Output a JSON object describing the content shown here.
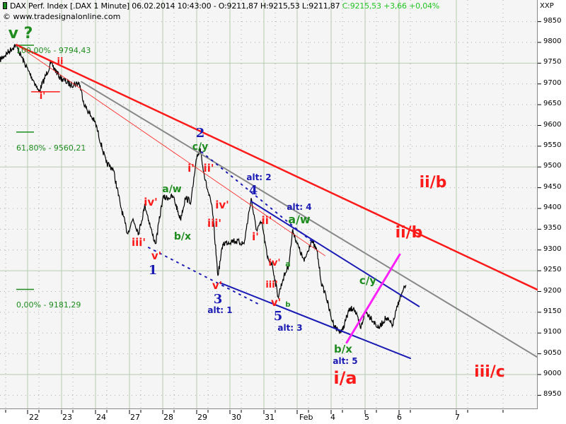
{
  "header": {
    "instrument": "DAX Perf. Index [.DAX  1 Minute]",
    "datetime": "06.02.2014 10:43:00",
    "ohl": "- O:9211,87 H:9215,53 L:9211,87",
    "close": "C:9215,53 +3,66 +0,04%",
    "copyright": "© www.tradesignalonline.com",
    "exchange": "XXP"
  },
  "colors": {
    "price": "#000000",
    "resistance": "#ff1a1a",
    "channel": "#1a1ab4",
    "gray_line": "#888888",
    "magenta": "#ff22ff",
    "fib": "#1e8c1e",
    "grid": "#b8ccb0"
  },
  "fib_levels": [
    {
      "label": "100,00% - 9794,43",
      "price": 9794.43
    },
    {
      "label": "61,80% - 9560,21",
      "price": 9560.21
    },
    {
      "label": "0,00% - 9181,29",
      "price": 9181.29
    }
  ],
  "wave_labels": {
    "v_q": "v ?",
    "ii_top": "ii",
    "i_top": "i'",
    "two": "2",
    "cy1": "c/y",
    "i2": "i'",
    "ii2": "ii'",
    "aw1": "a/w",
    "iv1": "iv'",
    "bx1": "b/x",
    "iii1": "iii'",
    "v1": "v'",
    "one": "1",
    "iv2": "iv'",
    "iii2": "iii'",
    "v2": "v'",
    "three": "3",
    "alt1": "alt: 1",
    "alt2": "alt: 2",
    "four": "4",
    "alt4": "alt: 4",
    "aw2": "a/w",
    "ii3": "ii'",
    "i3": "i'",
    "iv3": "iv'",
    "a3": "a",
    "iii3": "iii'",
    "v3": "v'",
    "b3": "b",
    "five": "5",
    "alt3": "alt: 3",
    "cy2": "c/y",
    "bx2": "b/x",
    "alt5": "alt: 5",
    "ia": "i/a",
    "iib1": "ii/b",
    "iib2": "ii/b",
    "iiic": "iii/c"
  },
  "chart_data": {
    "type": "line",
    "title": "DAX Perf. Index [.DAX  1 Minute]",
    "ylim": [
      8925,
      9870
    ],
    "yticks": [
      9850,
      9800,
      9750,
      9700,
      9650,
      9600,
      9550,
      9500,
      9450,
      9400,
      9350,
      9300,
      9250,
      9200,
      9150,
      9100,
      9050,
      9000,
      8950
    ],
    "xticks": [
      "22",
      "23",
      "24",
      "27",
      "28",
      "29",
      "30",
      "31",
      "Feb",
      "4",
      "5",
      "6",
      "7"
    ],
    "grid": true,
    "series": [
      {
        "points": [
          [
            "01-21 10:30",
            9757
          ],
          [
            "01-21 14:30",
            9794
          ],
          [
            "01-22 09:10",
            9732
          ],
          [
            "01-22 10:57",
            9700
          ],
          [
            "01-22 11:50",
            9680
          ],
          [
            "01-22 14:50",
            9750
          ],
          [
            "01-22 17:09",
            9715
          ],
          [
            "01-23 11:18",
            9698
          ],
          [
            "01-23 13:25",
            9702
          ],
          [
            "01-23 14:50",
            9647
          ],
          [
            "01-24 09:00",
            9605
          ],
          [
            "01-24 11:40",
            9510
          ],
          [
            "01-24 13:25",
            9495
          ],
          [
            "01-24 15:12",
            9410
          ],
          [
            "01-24 17:00",
            9340
          ],
          [
            "01-27 09:53",
            9375
          ],
          [
            "01-27 11:18",
            9340
          ],
          [
            "01-27 12:54",
            9408
          ],
          [
            "01-27 14:40",
            9340
          ],
          [
            "01-27 15:33",
            9315
          ],
          [
            "01-28 09:00",
            9425
          ],
          [
            "01-28 11:40",
            9428
          ],
          [
            "01-28 13:25",
            9374
          ],
          [
            "01-28 14:40",
            9425
          ],
          [
            "01-28 16:05",
            9417
          ],
          [
            "01-29 09:00",
            9520
          ],
          [
            "01-29 09:53",
            9545
          ],
          [
            "01-29 11:07",
            9468
          ],
          [
            "01-29 12:54",
            9400
          ],
          [
            "01-29 14:19",
            9238
          ],
          [
            "01-29 15:33",
            9315
          ],
          [
            "01-30 09:53",
            9323
          ],
          [
            "01-30 12:32",
            9315
          ],
          [
            "01-30 14:19",
            9425
          ],
          [
            "01-30 15:33",
            9349
          ],
          [
            "01-30 17:00",
            9366
          ],
          [
            "01-31 09:53",
            9281
          ],
          [
            "01-31 11:07",
            9264
          ],
          [
            "01-31 12:32",
            9187
          ],
          [
            "01-31 13:47",
            9230
          ],
          [
            "01-31 15:12",
            9264
          ],
          [
            "01-31 16:15",
            9349
          ],
          [
            "02-03 09:00",
            9315
          ],
          [
            "02-03 10:46",
            9272
          ],
          [
            "02-03 12:32",
            9323
          ],
          [
            "02-03 13:57",
            9298
          ],
          [
            "02-03 15:12",
            9213
          ],
          [
            "02-03 16:05",
            9196
          ],
          [
            "02-04 09:00",
            9137
          ],
          [
            "02-04 10:14",
            9111
          ],
          [
            "02-04 11:40",
            9102
          ],
          [
            "02-04 13:25",
            9153
          ],
          [
            "02-04 14:40",
            9162
          ],
          [
            "02-04 16:26",
            9111
          ],
          [
            "02-05 09:00",
            9153
          ],
          [
            "02-05 10:36",
            9136
          ],
          [
            "02-05 12:22",
            9111
          ],
          [
            "02-05 14:08",
            9136
          ],
          [
            "02-05 15:54",
            9119
          ],
          [
            "02-06 09:00",
            9179
          ],
          [
            "02-06 10:43",
            9215.53
          ]
        ]
      }
    ],
    "trendlines": [
      {
        "name": "red-resistance",
        "color": "#ff1a1a",
        "width": 2.5,
        "extend": true,
        "from": [
          "01-21 14:45",
          9794
        ],
        "to": [
          "02-06 09:00",
          9361
        ]
      },
      {
        "name": "red-thin",
        "color": "#ff1a1a",
        "width": 0.8,
        "extend": false,
        "from": [
          "01-21 14:45",
          9794
        ],
        "to": [
          "02-03 16:00",
          9286
        ]
      },
      {
        "name": "gray",
        "color": "#888888",
        "width": 2,
        "extend": true,
        "from": [
          "01-23 14:00",
          9705
        ],
        "to": [
          "02-06 09:00",
          9243
        ]
      },
      {
        "name": "blue-upper",
        "color": "#1a1ab4",
        "width": 2,
        "extend": false,
        "from": [
          "01-30 14:19",
          9417
        ],
        "to": [
          "02-06 14:00",
          9164
        ]
      },
      {
        "name": "blue-lower",
        "color": "#1a1ab4",
        "width": 2,
        "extend": false,
        "from": [
          "01-29 14:50",
          9221
        ],
        "to": [
          "02-06 11:50",
          9039
        ]
      },
      {
        "name": "blue-dotted-1",
        "color": "#1a1ab4",
        "width": 2,
        "dotted": true,
        "from": [
          "01-27 13:47",
          9306
        ],
        "to": [
          "01-30 16:05",
          9170
        ]
      },
      {
        "name": "blue-dotted-2",
        "color": "#1a1ab4",
        "width": 2,
        "dotted": true,
        "from": [
          "01-29 10:14",
          9536
        ],
        "to": [
          "02-03 13:25",
          9315
        ]
      },
      {
        "name": "magenta",
        "color": "#ff22ff",
        "width": 3,
        "from": [
          "02-04 12:54",
          9077
        ],
        "to": [
          "02-06 09:10",
          9289
        ]
      },
      {
        "name": "i-level",
        "color": "#ff1a1a",
        "width": 1.5,
        "from": [
          "01-22 10:00",
          9681
        ],
        "to": [
          "01-22 17:00",
          9681
        ]
      }
    ]
  }
}
